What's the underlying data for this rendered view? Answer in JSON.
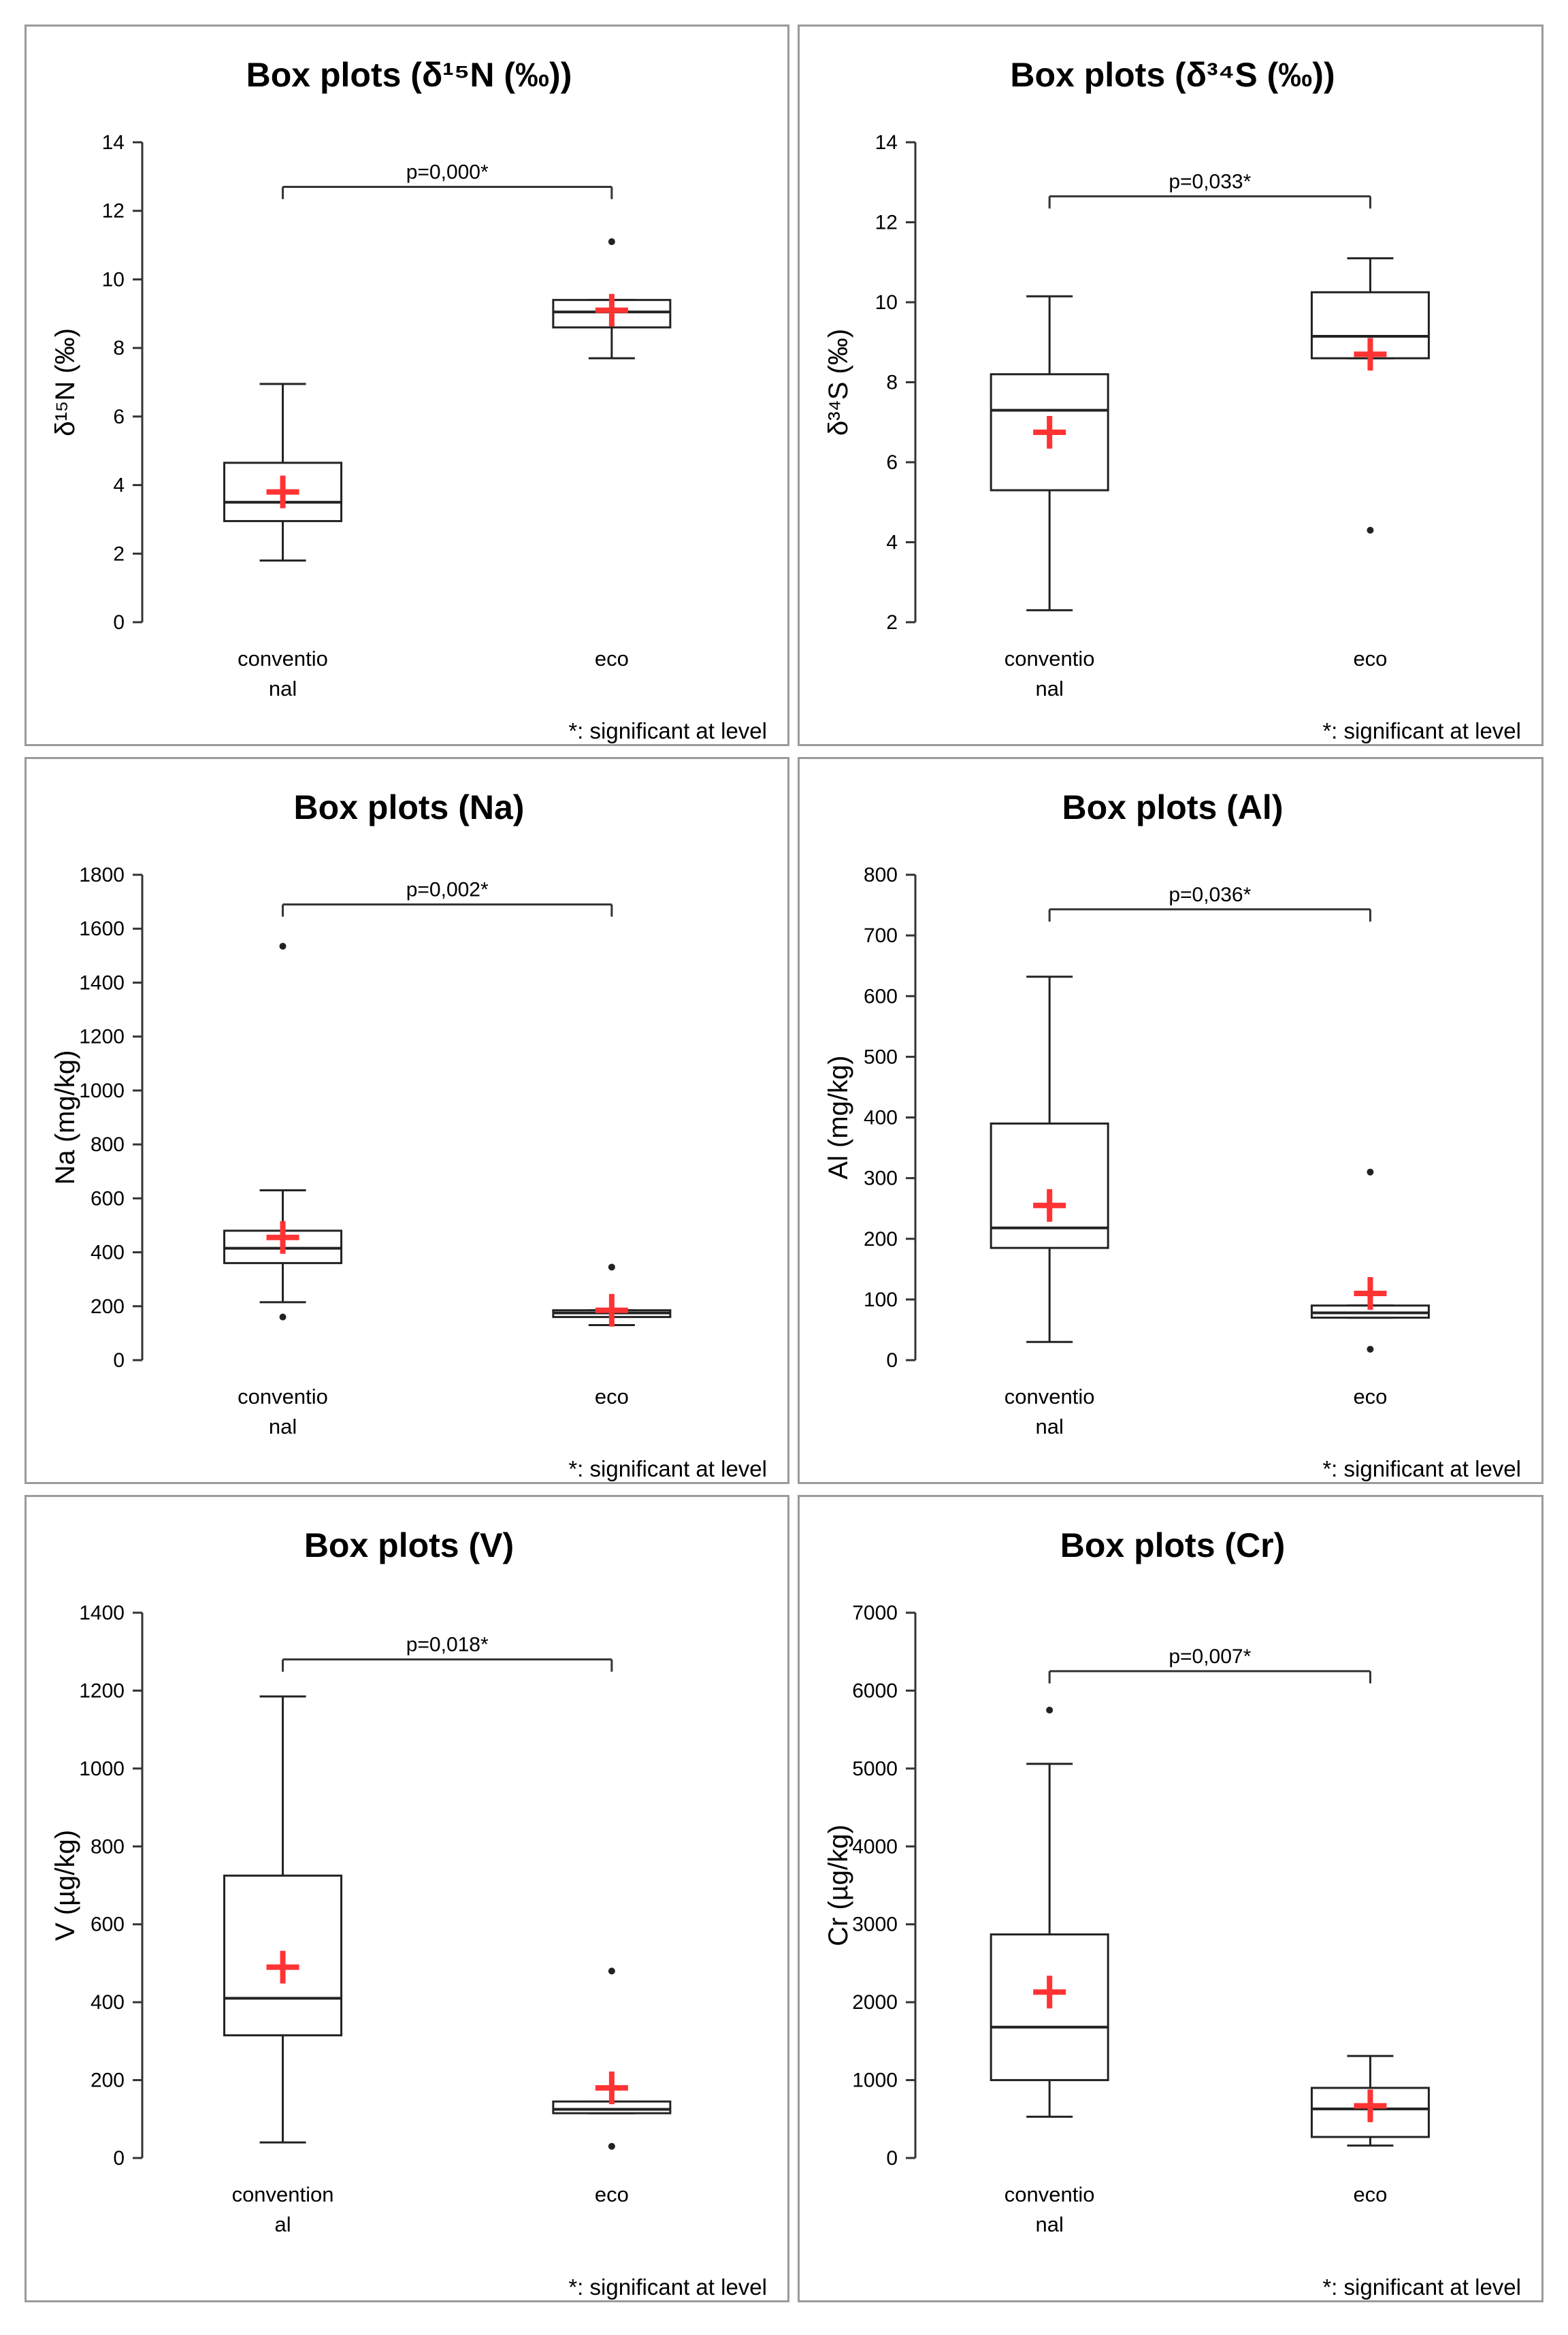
{
  "chart_data": [
    {
      "type": "box",
      "title": "Box plots (δ¹⁵N (‰))",
      "ylabel": "δ¹⁵N (‰)",
      "ylim": [
        0,
        14
      ],
      "yticks": [
        "0",
        "2",
        "4",
        "6",
        "8",
        "10",
        "12",
        "14"
      ],
      "categories": [
        "conventio|nal",
        "eco"
      ],
      "boxes": [
        {
          "whisker_low": 1.8,
          "q1": 2.95,
          "median": 3.5,
          "q3": 4.65,
          "whisker_high": 6.95,
          "mean": 3.8,
          "outliers": []
        },
        {
          "whisker_low": 7.7,
          "q1": 8.6,
          "median": 9.05,
          "q3": 9.4,
          "whisker_high": 9.4,
          "mean": 9.1,
          "outliers": [
            11.1
          ]
        }
      ],
      "bracket_value": 12.7,
      "p_label": "p=0,000*",
      "note": "*: significant at level"
    },
    {
      "type": "box",
      "title": "Box plots (δ³⁴S (‰))",
      "ylabel": "δ³⁴S (‰)",
      "ylim": [
        2,
        14
      ],
      "yticks": [
        "2",
        "4",
        "6",
        "8",
        "10",
        "12",
        "14"
      ],
      "categories": [
        "conventio|nal",
        "eco"
      ],
      "boxes": [
        {
          "whisker_low": 2.3,
          "q1": 5.3,
          "median": 7.3,
          "q3": 8.2,
          "whisker_high": 10.15,
          "mean": 6.75,
          "outliers": []
        },
        {
          "whisker_low": 8.6,
          "q1": 8.6,
          "median": 9.15,
          "q3": 10.25,
          "whisker_high": 11.1,
          "mean": 8.7,
          "outliers": [
            4.3
          ]
        }
      ],
      "bracket_value": 12.65,
      "p_label": "p=0,033*",
      "note": "*: significant at level"
    },
    {
      "type": "box",
      "title": "Box plots (Na)",
      "ylabel": "Na (mg/kg)",
      "ylim": [
        0,
        1800
      ],
      "yticks": [
        "0",
        "200",
        "400",
        "600",
        "800",
        "1000",
        "1200",
        "1400",
        "1600",
        "1800"
      ],
      "categories": [
        "conventio|nal",
        "eco"
      ],
      "boxes": [
        {
          "whisker_low": 215,
          "q1": 360,
          "median": 415,
          "q3": 480,
          "whisker_high": 630,
          "mean": 455,
          "outliers": [
            1535,
            160
          ]
        },
        {
          "whisker_low": 130,
          "q1": 160,
          "median": 175,
          "q3": 185,
          "whisker_high": 185,
          "mean": 185,
          "outliers": [
            345
          ]
        }
      ],
      "bracket_value": 1690,
      "p_label": "p=0,002*",
      "note": "*: significant at level"
    },
    {
      "type": "box",
      "title": "Box plots (Al)",
      "ylabel": "Al (mg/kg)",
      "ylim": [
        0,
        800
      ],
      "yticks": [
        "0",
        "100",
        "200",
        "300",
        "400",
        "500",
        "600",
        "700",
        "800"
      ],
      "categories": [
        "conventio|nal",
        "eco"
      ],
      "boxes": [
        {
          "whisker_low": 30,
          "q1": 185,
          "median": 218,
          "q3": 390,
          "whisker_high": 632,
          "mean": 255,
          "outliers": []
        },
        {
          "whisker_low": 70,
          "q1": 70,
          "median": 78,
          "q3": 90,
          "whisker_high": 90,
          "mean": 110,
          "outliers": [
            310,
            18
          ]
        }
      ],
      "bracket_value": 743,
      "p_label": "p=0,036*",
      "note": "*: significant at level"
    },
    {
      "type": "box",
      "title": "Box plots (V)",
      "ylabel": "V (µg/kg)",
      "ylim": [
        0,
        1400
      ],
      "yticks": [
        "0",
        "200",
        "400",
        "600",
        "800",
        "1000",
        "1200",
        "1400"
      ],
      "categories": [
        "convention|al",
        "eco"
      ],
      "boxes": [
        {
          "whisker_low": 40,
          "q1": 315,
          "median": 410,
          "q3": 725,
          "whisker_high": 1185,
          "mean": 490,
          "outliers": []
        },
        {
          "whisker_low": 115,
          "q1": 115,
          "median": 125,
          "q3": 145,
          "whisker_high": 145,
          "mean": 180,
          "outliers": [
            480,
            30
          ]
        }
      ],
      "bracket_value": 1280,
      "p_label": "p=0,018*",
      "note": "*: significant at level"
    },
    {
      "type": "box",
      "title": "Box plots (Cr)",
      "ylabel": "Cr (µg/kg)",
      "ylim": [
        0,
        7000
      ],
      "yticks": [
        "0",
        "1000",
        "2000",
        "3000",
        "4000",
        "5000",
        "6000",
        "7000"
      ],
      "categories": [
        "conventio|nal",
        "eco"
      ],
      "boxes": [
        {
          "whisker_low": 530,
          "q1": 1000,
          "median": 1680,
          "q3": 2870,
          "whisker_high": 5060,
          "mean": 2130,
          "outliers": [
            5750
          ]
        },
        {
          "whisker_low": 160,
          "q1": 270,
          "median": 630,
          "q3": 900,
          "whisker_high": 1310,
          "mean": 670,
          "outliers": []
        }
      ],
      "bracket_value": 6250,
      "p_label": "p=0,007*",
      "note": "*: significant at level"
    }
  ],
  "colors": {
    "mean_marker": "#ff3333",
    "box_line": "#222222",
    "axis": "#333333",
    "frame": "#9a9a9a"
  }
}
